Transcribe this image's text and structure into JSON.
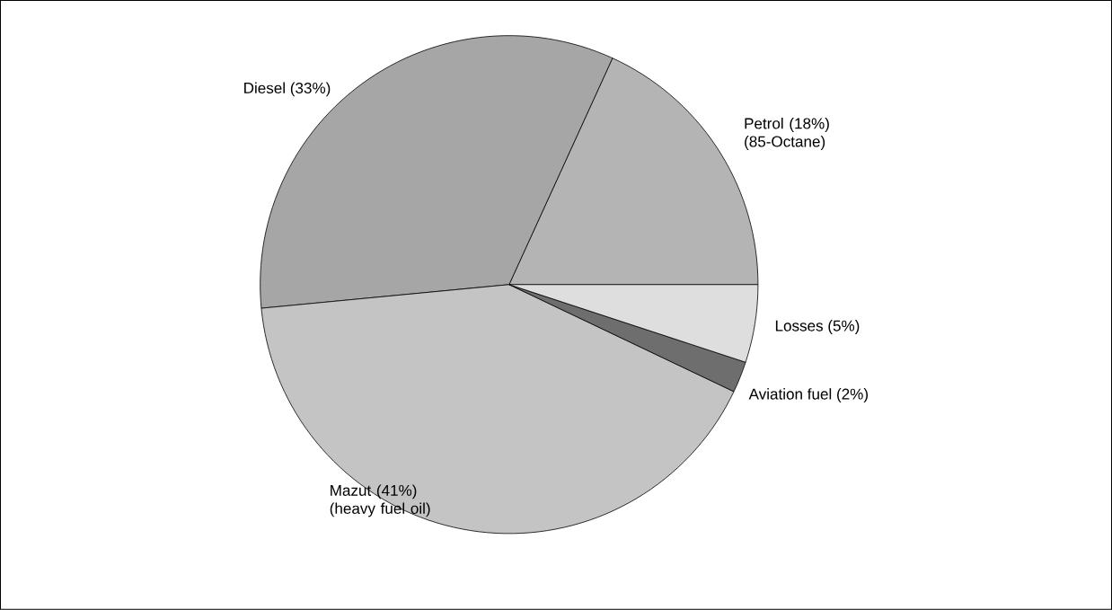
{
  "chart_data": {
    "type": "pie",
    "categories": [
      "Petrol (18%) (85-Octane)",
      "Diesel (33%)",
      "Mazut (41%) (heavy fuel oil)",
      "Aviation fuel (2%)",
      "Losses (5%)"
    ],
    "values": [
      18,
      33,
      41,
      2,
      5
    ],
    "colors": [
      "#b4b4b4",
      "#a6a6a6",
      "#c4c4c4",
      "#6e6e6e",
      "#dedede"
    ]
  }
}
